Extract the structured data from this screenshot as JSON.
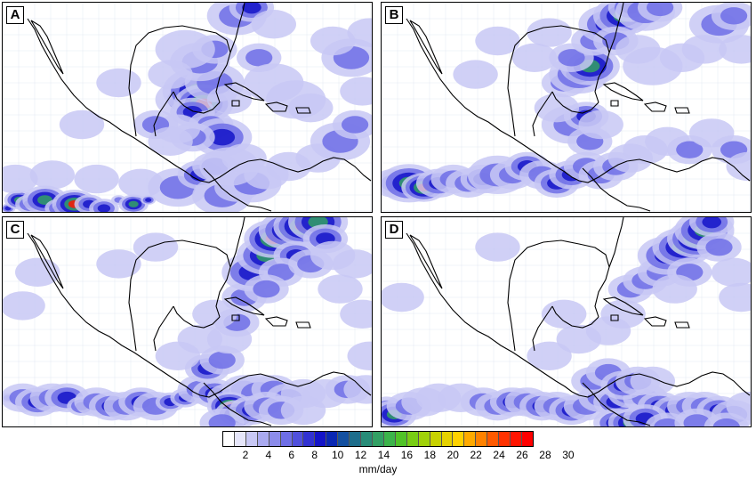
{
  "panels": [
    {
      "label": "A",
      "cells": [
        [
          0.0,
          0.5,
          1,
          3
        ],
        [
          0.03,
          0.48,
          2,
          4
        ],
        [
          0.06,
          0.49,
          2,
          3
        ],
        [
          0.1,
          0.48,
          3,
          4
        ],
        [
          0.14,
          0.5,
          2,
          3
        ],
        [
          0.18,
          0.49,
          3,
          5
        ],
        [
          0.22,
          0.49,
          2,
          3
        ],
        [
          0.26,
          0.5,
          2,
          3
        ],
        [
          0.3,
          0.48,
          1,
          2
        ],
        [
          0.34,
          0.49,
          2,
          4
        ],
        [
          0.38,
          0.48,
          1,
          3
        ],
        [
          0.02,
          0.43,
          3,
          1
        ],
        [
          0.12,
          0.42,
          3,
          1
        ],
        [
          0.24,
          0.43,
          3,
          1
        ],
        [
          0.36,
          0.44,
          3,
          1
        ],
        [
          0.46,
          0.45,
          4,
          2
        ],
        [
          0.52,
          0.42,
          3,
          3
        ],
        [
          0.56,
          0.4,
          3,
          2
        ],
        [
          0.58,
          0.47,
          4,
          2
        ],
        [
          0.62,
          0.45,
          3,
          1
        ],
        [
          0.66,
          0.44,
          4,
          2
        ],
        [
          0.7,
          0.42,
          3,
          1
        ],
        [
          0.76,
          0.4,
          3,
          1
        ],
        [
          0.84,
          0.38,
          3,
          1
        ],
        [
          0.9,
          0.34,
          4,
          2
        ],
        [
          0.94,
          0.3,
          3,
          2
        ],
        [
          0.96,
          0.22,
          3,
          1
        ],
        [
          0.93,
          0.14,
          4,
          2
        ],
        [
          0.88,
          0.1,
          3,
          1
        ],
        [
          0.98,
          0.08,
          3,
          1
        ],
        [
          0.48,
          0.24,
          4,
          2
        ],
        [
          0.52,
          0.22,
          5,
          4
        ],
        [
          0.53,
          0.25,
          4,
          5
        ],
        [
          0.5,
          0.27,
          3,
          3
        ],
        [
          0.55,
          0.3,
          3,
          2
        ],
        [
          0.58,
          0.33,
          4,
          3
        ],
        [
          0.5,
          0.33,
          3,
          2
        ],
        [
          0.46,
          0.31,
          3,
          1
        ],
        [
          0.56,
          0.2,
          4,
          2
        ],
        [
          0.6,
          0.24,
          3,
          1
        ],
        [
          0.52,
          0.15,
          4,
          2
        ],
        [
          0.56,
          0.12,
          3,
          2
        ],
        [
          0.48,
          0.12,
          4,
          1
        ],
        [
          0.44,
          0.18,
          3,
          1
        ],
        [
          0.62,
          0.04,
          4,
          2
        ],
        [
          0.66,
          0.02,
          3,
          3
        ],
        [
          0.72,
          0.06,
          3,
          1
        ],
        [
          0.68,
          0.14,
          3,
          2
        ],
        [
          0.72,
          0.2,
          4,
          1
        ],
        [
          0.78,
          0.24,
          4,
          1
        ],
        [
          0.82,
          0.26,
          3,
          1
        ],
        [
          0.4,
          0.3,
          3,
          2
        ],
        [
          0.44,
          0.34,
          3,
          1
        ],
        [
          0.6,
          0.4,
          4,
          1
        ],
        [
          0.64,
          0.38,
          3,
          1
        ],
        [
          0.3,
          0.2,
          3,
          1
        ],
        [
          0.2,
          0.3,
          3,
          1
        ]
      ]
    },
    {
      "label": "B",
      "cells": [
        [
          0.02,
          0.44,
          3,
          2
        ],
        [
          0.06,
          0.44,
          4,
          4
        ],
        [
          0.1,
          0.45,
          3,
          5
        ],
        [
          0.14,
          0.44,
          3,
          3
        ],
        [
          0.18,
          0.43,
          3,
          2
        ],
        [
          0.22,
          0.44,
          3,
          2
        ],
        [
          0.26,
          0.43,
          3,
          3
        ],
        [
          0.3,
          0.42,
          4,
          2
        ],
        [
          0.34,
          0.42,
          3,
          2
        ],
        [
          0.38,
          0.4,
          3,
          3
        ],
        [
          0.42,
          0.42,
          3,
          2
        ],
        [
          0.46,
          0.44,
          3,
          3
        ],
        [
          0.5,
          0.42,
          3,
          3
        ],
        [
          0.54,
          0.4,
          3,
          2
        ],
        [
          0.58,
          0.42,
          3,
          2
        ],
        [
          0.62,
          0.4,
          3,
          2
        ],
        [
          0.66,
          0.38,
          3,
          1
        ],
        [
          0.7,
          0.36,
          3,
          1
        ],
        [
          0.76,
          0.34,
          3,
          1
        ],
        [
          0.82,
          0.36,
          3,
          2
        ],
        [
          0.88,
          0.32,
          3,
          1
        ],
        [
          0.94,
          0.36,
          3,
          2
        ],
        [
          0.98,
          0.4,
          3,
          1
        ],
        [
          0.5,
          0.3,
          4,
          2
        ],
        [
          0.55,
          0.34,
          3,
          2
        ],
        [
          0.54,
          0.28,
          3,
          3
        ],
        [
          0.58,
          0.3,
          3,
          1
        ],
        [
          0.48,
          0.2,
          3,
          2
        ],
        [
          0.52,
          0.18,
          4,
          3
        ],
        [
          0.55,
          0.16,
          4,
          4
        ],
        [
          0.5,
          0.14,
          3,
          2
        ],
        [
          0.56,
          0.1,
          3,
          2
        ],
        [
          0.6,
          0.06,
          4,
          3
        ],
        [
          0.64,
          0.04,
          4,
          4
        ],
        [
          0.66,
          0.02,
          3,
          3
        ],
        [
          0.7,
          0.03,
          4,
          2
        ],
        [
          0.74,
          0.02,
          3,
          2
        ],
        [
          0.62,
          0.1,
          3,
          2
        ],
        [
          0.68,
          0.12,
          3,
          1
        ],
        [
          0.72,
          0.16,
          4,
          1
        ],
        [
          0.8,
          0.14,
          3,
          1
        ],
        [
          0.86,
          0.12,
          3,
          1
        ],
        [
          0.9,
          0.06,
          4,
          2
        ],
        [
          0.94,
          0.04,
          3,
          2
        ],
        [
          0.96,
          0.12,
          3,
          1
        ],
        [
          0.44,
          0.08,
          3,
          1
        ],
        [
          0.4,
          0.14,
          3,
          1
        ],
        [
          0.3,
          0.1,
          3,
          1
        ],
        [
          0.24,
          0.18,
          3,
          1
        ],
        [
          0.46,
          0.26,
          3,
          1
        ]
      ]
    },
    {
      "label": "C",
      "cells": [
        [
          0.0,
          0.44,
          1,
          2
        ],
        [
          0.04,
          0.44,
          3,
          2
        ],
        [
          0.08,
          0.45,
          3,
          3
        ],
        [
          0.12,
          0.44,
          3,
          2
        ],
        [
          0.16,
          0.44,
          3,
          3
        ],
        [
          0.2,
          0.46,
          2,
          3
        ],
        [
          0.24,
          0.45,
          3,
          2
        ],
        [
          0.28,
          0.46,
          3,
          3
        ],
        [
          0.32,
          0.46,
          3,
          2
        ],
        [
          0.36,
          0.45,
          3,
          3
        ],
        [
          0.4,
          0.46,
          3,
          2
        ],
        [
          0.44,
          0.45,
          2,
          3
        ],
        [
          0.48,
          0.44,
          2,
          3
        ],
        [
          0.52,
          0.42,
          3,
          2
        ],
        [
          0.56,
          0.43,
          3,
          3
        ],
        [
          0.6,
          0.44,
          3,
          2
        ],
        [
          0.64,
          0.42,
          3,
          2
        ],
        [
          0.68,
          0.43,
          4,
          2
        ],
        [
          0.72,
          0.42,
          3,
          2
        ],
        [
          0.76,
          0.44,
          3,
          2
        ],
        [
          0.8,
          0.43,
          3,
          1
        ],
        [
          0.86,
          0.43,
          3,
          1
        ],
        [
          0.92,
          0.42,
          3,
          2
        ],
        [
          0.97,
          0.42,
          3,
          1
        ],
        [
          0.54,
          0.37,
          3,
          3
        ],
        [
          0.58,
          0.35,
          3,
          2
        ],
        [
          0.6,
          0.46,
          3,
          5
        ],
        [
          0.62,
          0.48,
          3,
          4
        ],
        [
          0.66,
          0.47,
          3,
          3
        ],
        [
          0.7,
          0.46,
          3,
          2
        ],
        [
          0.74,
          0.47,
          3,
          2
        ],
        [
          0.8,
          0.47,
          3,
          1
        ],
        [
          0.58,
          0.5,
          3,
          2
        ],
        [
          0.6,
          0.3,
          3,
          1
        ],
        [
          0.62,
          0.26,
          3,
          2
        ],
        [
          0.64,
          0.2,
          3,
          2
        ],
        [
          0.66,
          0.14,
          4,
          3
        ],
        [
          0.7,
          0.1,
          4,
          4
        ],
        [
          0.72,
          0.06,
          4,
          5
        ],
        [
          0.76,
          0.04,
          4,
          4
        ],
        [
          0.8,
          0.03,
          4,
          5
        ],
        [
          0.84,
          0.02,
          4,
          4
        ],
        [
          0.86,
          0.06,
          3,
          3
        ],
        [
          0.78,
          0.1,
          3,
          3
        ],
        [
          0.74,
          0.14,
          3,
          2
        ],
        [
          0.7,
          0.18,
          3,
          2
        ],
        [
          0.82,
          0.12,
          3,
          2
        ],
        [
          0.88,
          0.1,
          3,
          1
        ],
        [
          0.94,
          0.12,
          3,
          1
        ],
        [
          0.9,
          0.18,
          3,
          1
        ],
        [
          0.96,
          0.24,
          3,
          1
        ],
        [
          0.98,
          0.34,
          3,
          1
        ],
        [
          0.56,
          0.24,
          3,
          1
        ],
        [
          0.52,
          0.3,
          3,
          1
        ],
        [
          0.46,
          0.34,
          3,
          1
        ],
        [
          0.04,
          0.22,
          3,
          1
        ],
        [
          0.08,
          0.14,
          3,
          1
        ],
        [
          0.4,
          0.08,
          3,
          1
        ],
        [
          0.3,
          0.12,
          3,
          1
        ]
      ]
    },
    {
      "label": "D",
      "cells": [
        [
          0.0,
          0.46,
          2,
          2
        ],
        [
          0.02,
          0.48,
          3,
          4
        ],
        [
          0.06,
          0.46,
          3,
          2
        ],
        [
          0.1,
          0.45,
          3,
          1
        ],
        [
          0.14,
          0.44,
          3,
          1
        ],
        [
          0.2,
          0.44,
          3,
          1
        ],
        [
          0.26,
          0.45,
          3,
          2
        ],
        [
          0.3,
          0.46,
          3,
          2
        ],
        [
          0.34,
          0.45,
          3,
          3
        ],
        [
          0.38,
          0.45,
          3,
          2
        ],
        [
          0.42,
          0.46,
          3,
          3
        ],
        [
          0.46,
          0.46,
          3,
          2
        ],
        [
          0.5,
          0.47,
          3,
          3
        ],
        [
          0.54,
          0.46,
          3,
          2
        ],
        [
          0.58,
          0.44,
          3,
          2
        ],
        [
          0.62,
          0.45,
          3,
          3
        ],
        [
          0.66,
          0.43,
          3,
          3
        ],
        [
          0.7,
          0.44,
          3,
          2
        ],
        [
          0.74,
          0.46,
          3,
          3
        ],
        [
          0.78,
          0.47,
          3,
          3
        ],
        [
          0.82,
          0.46,
          3,
          2
        ],
        [
          0.86,
          0.46,
          3,
          2
        ],
        [
          0.9,
          0.47,
          3,
          3
        ],
        [
          0.94,
          0.48,
          3,
          2
        ],
        [
          0.98,
          0.46,
          3,
          1
        ],
        [
          0.56,
          0.4,
          3,
          2
        ],
        [
          0.6,
          0.38,
          3,
          2
        ],
        [
          0.64,
          0.41,
          3,
          3
        ],
        [
          0.68,
          0.4,
          3,
          2
        ],
        [
          0.72,
          0.4,
          3,
          1
        ],
        [
          0.62,
          0.5,
          3,
          3
        ],
        [
          0.66,
          0.5,
          3,
          4
        ],
        [
          0.7,
          0.49,
          3,
          3
        ],
        [
          0.76,
          0.51,
          3,
          2
        ],
        [
          0.84,
          0.5,
          3,
          2
        ],
        [
          0.92,
          0.51,
          3,
          2
        ],
        [
          0.6,
          0.28,
          3,
          1
        ],
        [
          0.64,
          0.24,
          3,
          1
        ],
        [
          0.66,
          0.18,
          3,
          2
        ],
        [
          0.7,
          0.16,
          3,
          2
        ],
        [
          0.74,
          0.14,
          3,
          2
        ],
        [
          0.76,
          0.1,
          4,
          3
        ],
        [
          0.8,
          0.08,
          4,
          4
        ],
        [
          0.84,
          0.06,
          4,
          5
        ],
        [
          0.86,
          0.04,
          4,
          4
        ],
        [
          0.88,
          0.02,
          3,
          3
        ],
        [
          0.9,
          0.08,
          3,
          2
        ],
        [
          0.82,
          0.14,
          3,
          2
        ],
        [
          0.78,
          0.18,
          3,
          1
        ],
        [
          0.94,
          0.14,
          3,
          1
        ],
        [
          0.96,
          0.2,
          3,
          1
        ],
        [
          0.52,
          0.3,
          3,
          1
        ],
        [
          0.48,
          0.24,
          3,
          1
        ],
        [
          0.44,
          0.34,
          3,
          1
        ],
        [
          0.04,
          0.2,
          3,
          1
        ],
        [
          0.3,
          0.08,
          3,
          1
        ]
      ]
    }
  ],
  "colorbar": {
    "colors": [
      "#ffffff",
      "#e6e6fa",
      "#c8c8f5",
      "#aaaaf0",
      "#8c8ceb",
      "#6e6ee6",
      "#5050dc",
      "#3232d2",
      "#1414c8",
      "#0a28b4",
      "#1450a0",
      "#1e6e8c",
      "#288c78",
      "#32a064",
      "#3cb44b",
      "#50c328",
      "#78cd14",
      "#a0d20a",
      "#c8d200",
      "#e6d200",
      "#ffd200",
      "#ffaa00",
      "#ff8200",
      "#ff5a00",
      "#ff3200",
      "#ff1400",
      "#ff0000"
    ],
    "tick_values": [
      "2",
      "4",
      "6",
      "8",
      "10",
      "12",
      "14",
      "16",
      "18",
      "20",
      "22",
      "24",
      "26",
      "28",
      "30"
    ],
    "units": "mm/day"
  }
}
